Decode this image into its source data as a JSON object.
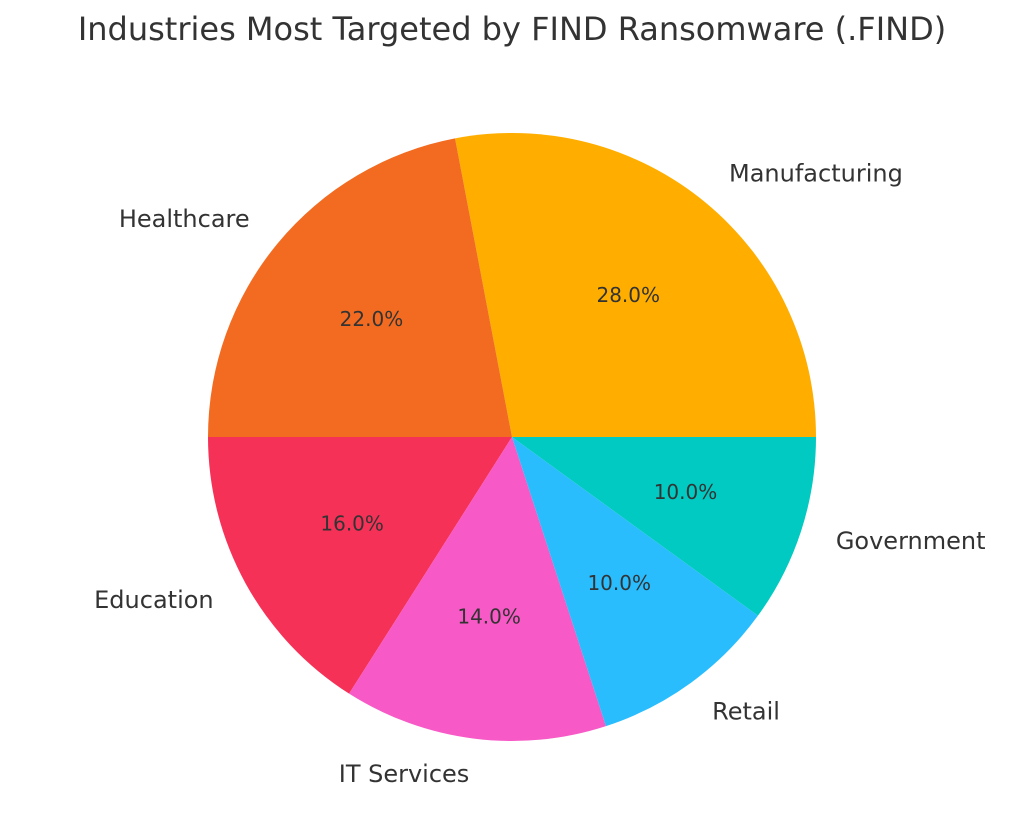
{
  "chart_data": {
    "type": "pie",
    "title": "Industries Most Targeted by FIND Ransomware (.FIND)",
    "categories": [
      "Manufacturing",
      "Healthcare",
      "Education",
      "IT Services",
      "Retail",
      "Government"
    ],
    "values": [
      28.0,
      22.0,
      16.0,
      14.0,
      10.0,
      10.0
    ],
    "value_labels": [
      "28.0%",
      "22.0%",
      "16.0%",
      "14.0%",
      "10.0%",
      "10.0%"
    ],
    "colors": [
      "#FFAE00",
      "#F26B21",
      "#F53157",
      "#F759C6",
      "#29BDFE",
      "#00CAC1"
    ],
    "start_angle_deg": 0,
    "direction": "counterclockwise",
    "legend": "none"
  }
}
